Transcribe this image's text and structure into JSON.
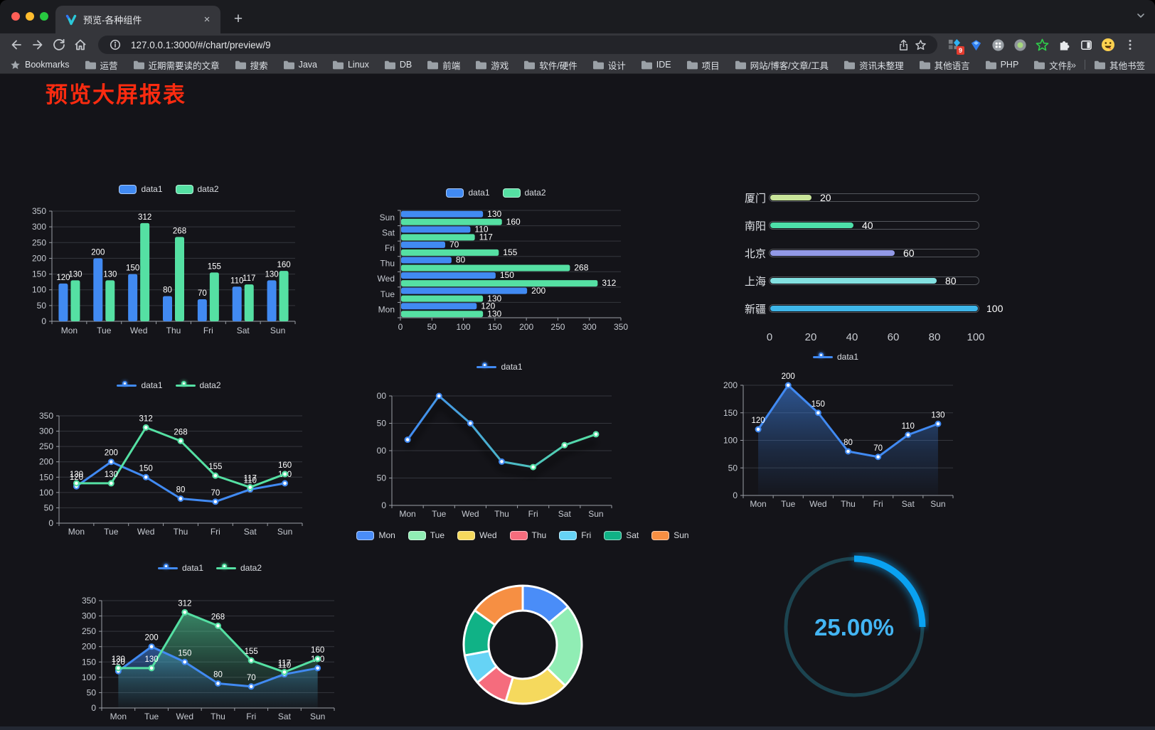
{
  "browser": {
    "tab_title": "预览-各种组件",
    "new_tab_label": "+",
    "url": "127.0.0.1:3000/#/chart/preview/9",
    "bookmarks_label": "Bookmarks",
    "bookmarks": [
      "运营",
      "近期需要读的文章",
      "搜索",
      "Java",
      "Linux",
      "DB",
      "前端",
      "游戏",
      "软件/硬件",
      "设计",
      "IDE",
      "项目",
      "网站/博客/文章/工具",
      "资讯未整理",
      "其他语言",
      "PHP",
      "文件服务器"
    ],
    "bookmarks_overflow": "»",
    "other_bookmarks": "其他书签",
    "extension_badge": "9"
  },
  "page": {
    "title": "预览大屏报表"
  },
  "chart_data": [
    {
      "id": "bar-vertical",
      "type": "bar",
      "categories": [
        "Mon",
        "Tue",
        "Wed",
        "Thu",
        "Fri",
        "Sat",
        "Sun"
      ],
      "series": [
        {
          "name": "data1",
          "color": "#418af2",
          "values": [
            120,
            200,
            150,
            80,
            70,
            110,
            130
          ]
        },
        {
          "name": "data2",
          "color": "#55e0a3",
          "values": [
            130,
            130,
            312,
            268,
            155,
            117,
            160
          ]
        }
      ],
      "ylim": [
        0,
        350
      ],
      "ytick_step": 50,
      "show_labels": true,
      "legend": [
        "data1",
        "data2"
      ]
    },
    {
      "id": "bar-horizontal",
      "type": "hbar",
      "categories": [
        "Mon",
        "Tue",
        "Wed",
        "Thu",
        "Fri",
        "Sat",
        "Sun"
      ],
      "series": [
        {
          "name": "data1",
          "color": "#418af2",
          "values": [
            120,
            200,
            150,
            80,
            70,
            110,
            130
          ]
        },
        {
          "name": "data2",
          "color": "#55e0a3",
          "values": [
            130,
            130,
            312,
            268,
            155,
            117,
            160
          ]
        }
      ],
      "xlim": [
        0,
        350
      ],
      "xtick_step": 50,
      "show_labels": true,
      "legend": [
        "data1",
        "data2"
      ]
    },
    {
      "id": "progress-bars",
      "type": "progress",
      "max": 100,
      "ticks": [
        0,
        20,
        40,
        60,
        80,
        100
      ],
      "items": [
        {
          "label": "厦门",
          "value": 20,
          "color": "#c9e59a"
        },
        {
          "label": "南阳",
          "value": 40,
          "color": "#4ddfa9"
        },
        {
          "label": "北京",
          "value": 60,
          "color": "#9299e6"
        },
        {
          "label": "上海",
          "value": 80,
          "color": "#83e1e1"
        },
        {
          "label": "新疆",
          "value": 100,
          "color": "#3eb6e9"
        }
      ]
    },
    {
      "id": "line-two-series",
      "type": "line",
      "categories": [
        "Mon",
        "Tue",
        "Wed",
        "Thu",
        "Fri",
        "Sat",
        "Sun"
      ],
      "series": [
        {
          "name": "data1",
          "color": "#418af2",
          "values": [
            120,
            200,
            150,
            80,
            70,
            110,
            130
          ]
        },
        {
          "name": "data2",
          "color": "#55e0a3",
          "values": [
            130,
            130,
            312,
            268,
            155,
            117,
            160
          ]
        }
      ],
      "ylim": [
        0,
        350
      ],
      "ytick_step": 50,
      "show_labels": true,
      "legend": [
        "data1",
        "data2"
      ]
    },
    {
      "id": "line-gradient",
      "type": "line",
      "categories": [
        "Mon",
        "Tue",
        "Wed",
        "Thu",
        "Fri",
        "Sat",
        "Sun"
      ],
      "series": [
        {
          "name": "data1",
          "color": "#418af2",
          "values": [
            120,
            200,
            150,
            80,
            70,
            110,
            130
          ]
        }
      ],
      "ylim": [
        0,
        200
      ],
      "ytick_step": 50,
      "show_labels": false,
      "legend": [
        "data1"
      ],
      "stroke_gradient": [
        "#418af2",
        "#55e0a3"
      ],
      "shadow": true
    },
    {
      "id": "area-single",
      "type": "line",
      "area": true,
      "categories": [
        "Mon",
        "Tue",
        "Wed",
        "Thu",
        "Fri",
        "Sat",
        "Sun"
      ],
      "series": [
        {
          "name": "data1",
          "color": "#418af2",
          "values": [
            120,
            200,
            150,
            80,
            70,
            110,
            130
          ]
        }
      ],
      "ylim": [
        0,
        200
      ],
      "ytick_step": 50,
      "show_labels": true,
      "legend": [
        "data1"
      ]
    },
    {
      "id": "area-two-series",
      "type": "line",
      "area": true,
      "categories": [
        "Mon",
        "Tue",
        "Wed",
        "Thu",
        "Fri",
        "Sat",
        "Sun"
      ],
      "series": [
        {
          "name": "data1",
          "color": "#418af2",
          "values": [
            120,
            200,
            150,
            80,
            70,
            110,
            130
          ]
        },
        {
          "name": "data2",
          "color": "#55e0a3",
          "values": [
            130,
            130,
            312,
            268,
            155,
            117,
            160
          ]
        }
      ],
      "ylim": [
        0,
        350
      ],
      "ytick_step": 50,
      "show_labels": true,
      "legend": [
        "data1",
        "data2"
      ]
    },
    {
      "id": "donut",
      "type": "donut",
      "items": [
        {
          "label": "Mon",
          "value": 120,
          "color": "#4a8df8"
        },
        {
          "label": "Tue",
          "value": 200,
          "color": "#90edb4"
        },
        {
          "label": "Wed",
          "value": 150,
          "color": "#f5d95d"
        },
        {
          "label": "Thu",
          "value": 80,
          "color": "#f56c7d"
        },
        {
          "label": "Fri",
          "value": 70,
          "color": "#66d3f5"
        },
        {
          "label": "Sat",
          "value": 110,
          "color": "#10b286"
        },
        {
          "label": "Sun",
          "value": 130,
          "color": "#f68f43"
        }
      ]
    },
    {
      "id": "gauge",
      "type": "gauge",
      "value": 25,
      "label": "25.00%",
      "arc_color": "#0aa2f2",
      "track_color": "#1c4450",
      "text_color": "#43b5f3"
    }
  ]
}
